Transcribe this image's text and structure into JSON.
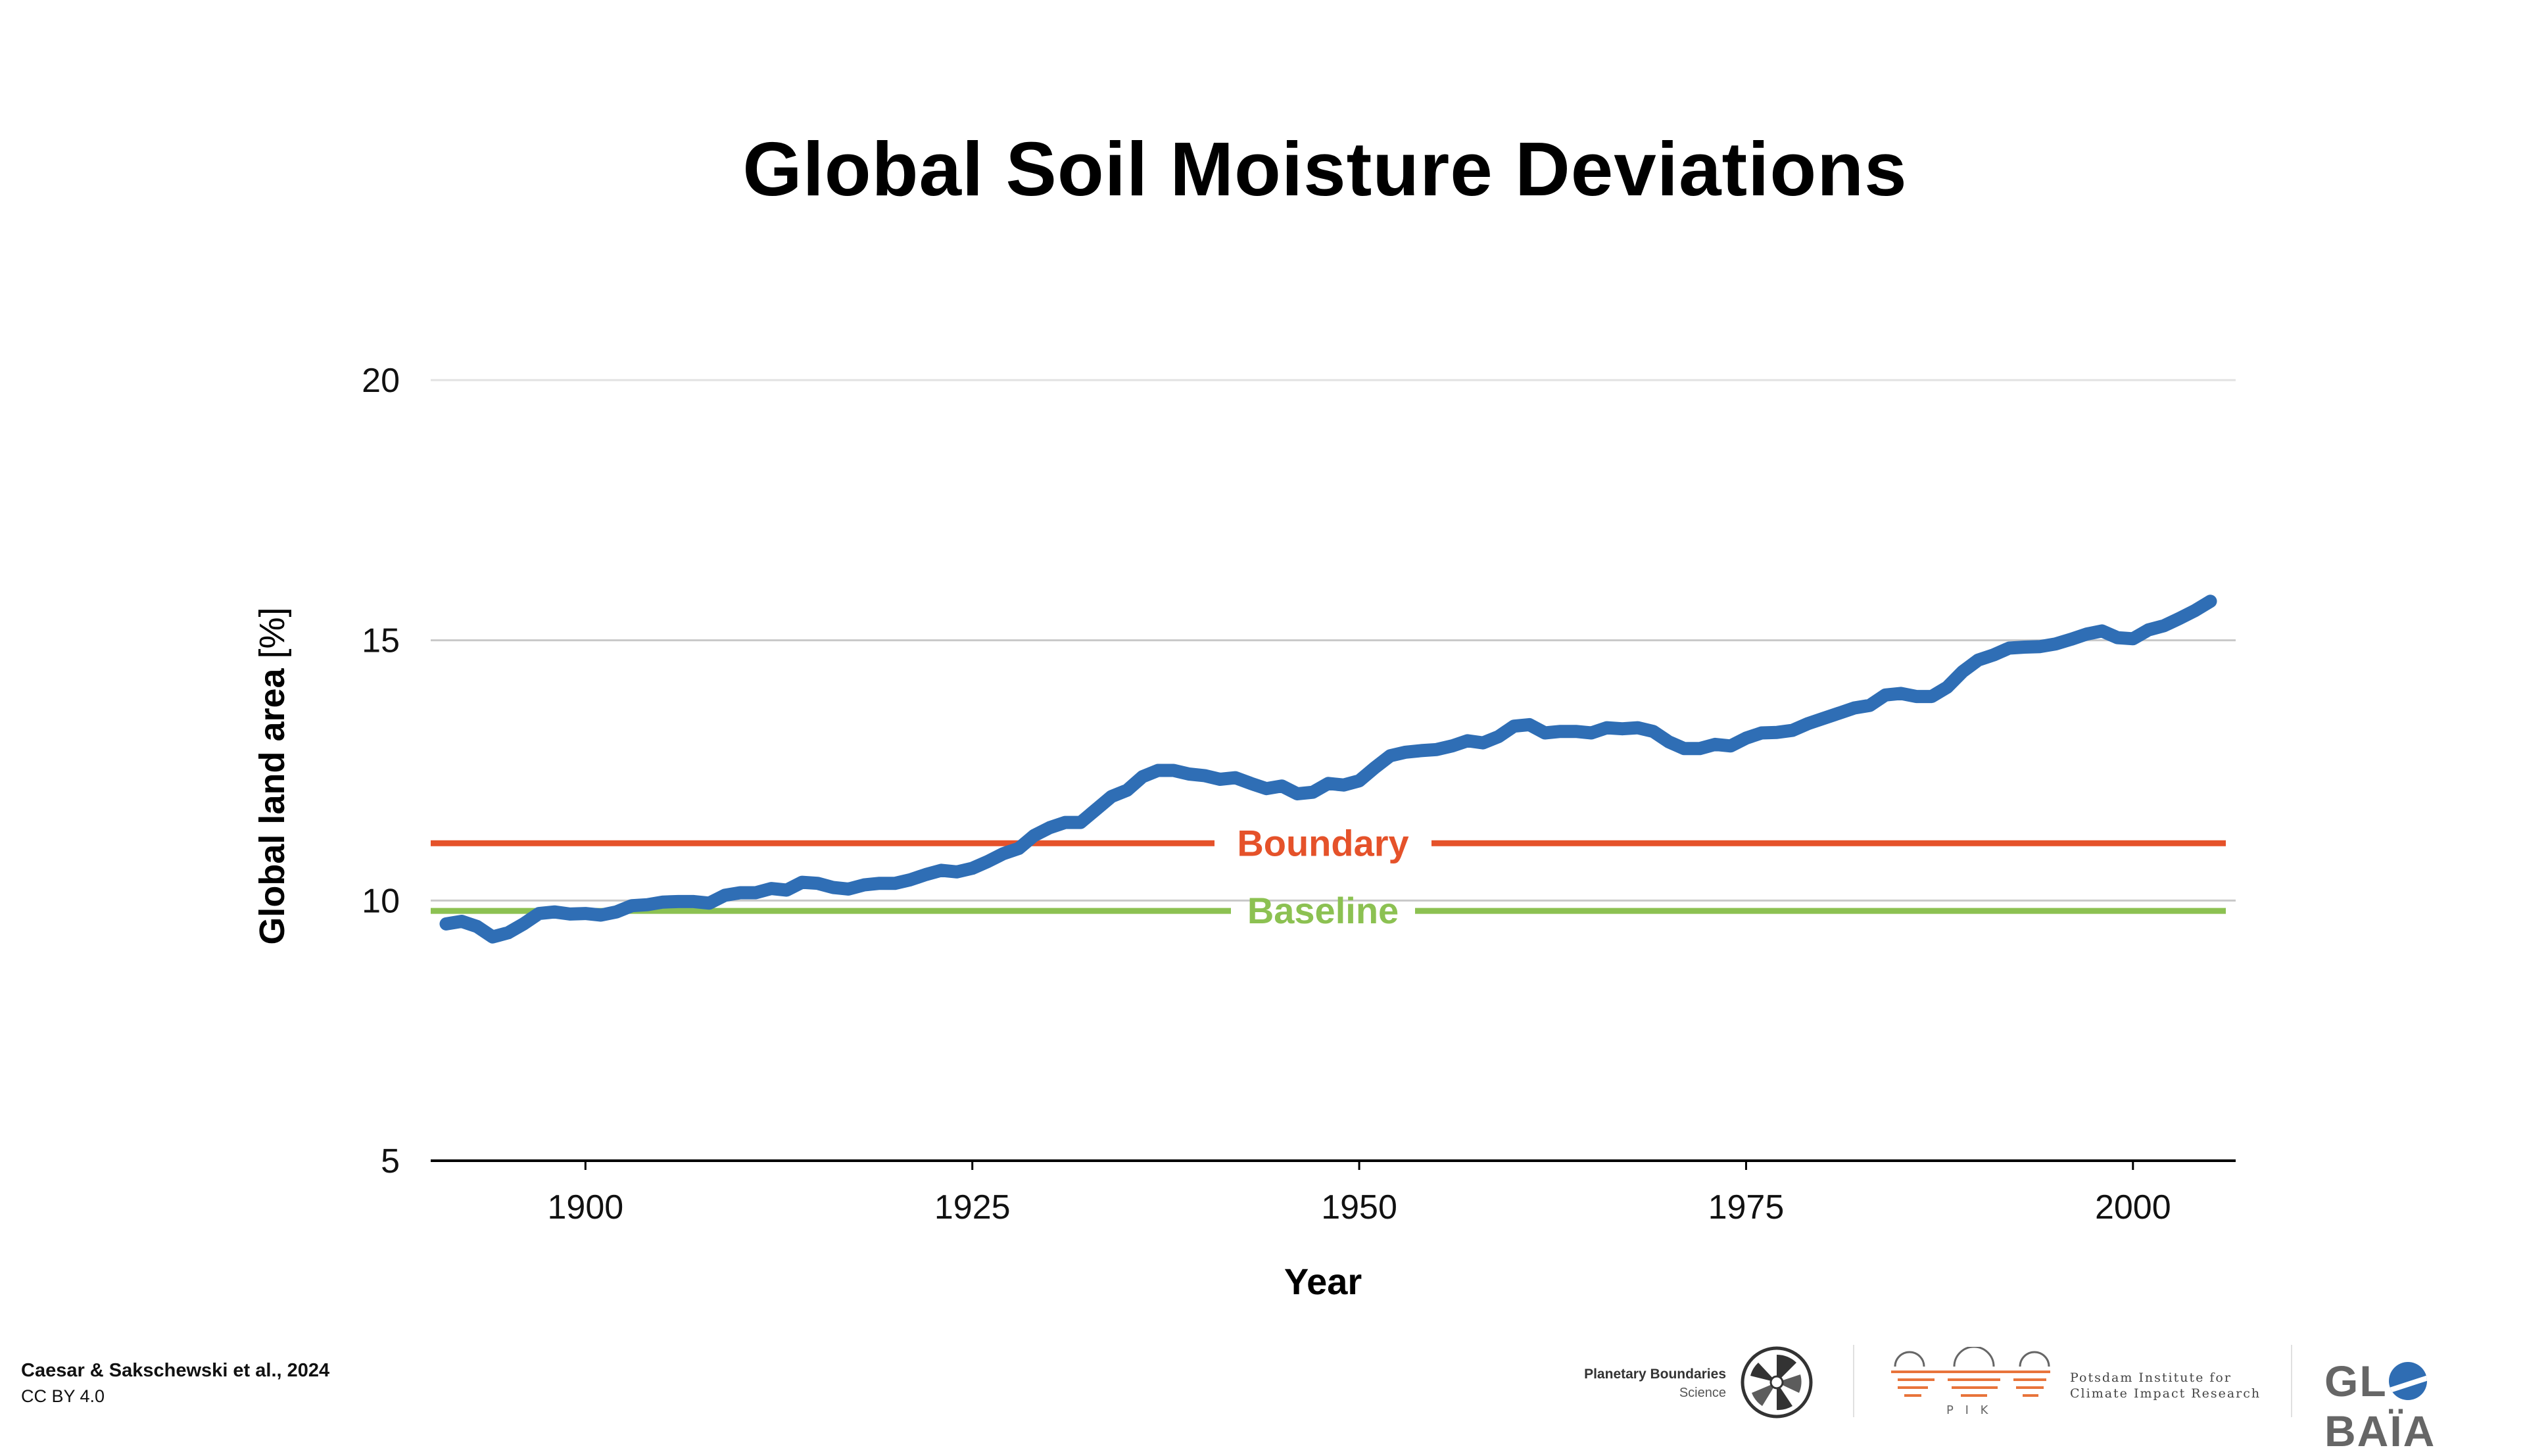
{
  "title": "Global Soil Moisture Deviations",
  "credit": {
    "line1": "Caesar & Sakschewski et al., 2024",
    "line2": "CC BY 4.0"
  },
  "logos": {
    "pbs_line1": "Planetary Boundaries",
    "pbs_line2": "Science",
    "pik_letters": "P I K",
    "pik_line1": "Potsdam Institute for",
    "pik_line2": "Climate Impact Research",
    "globaia_left": "GL",
    "globaia_right": "BAÏA"
  },
  "colors": {
    "series": "#2f6eb5",
    "boundary": "#e5522a",
    "baseline": "#8cc152",
    "grid": "#cfcfcf",
    "axis": "#000000",
    "pik_orange": "#e8743b"
  },
  "chart_data": {
    "type": "line",
    "title": "Global Soil Moisture Deviations",
    "xlabel": "Year",
    "ylabel": "Global land area [%]",
    "xlim": [
      1890,
      2006
    ],
    "ylim": [
      5,
      20
    ],
    "x_ticks": [
      1900,
      1925,
      1950,
      1975,
      2000
    ],
    "y_ticks": [
      5,
      10,
      15,
      20
    ],
    "grid": "horizontal",
    "reference_lines": [
      {
        "name": "Boundary",
        "y": 11.1
      },
      {
        "name": "Baseline",
        "y": 9.8
      }
    ],
    "series": [
      {
        "x": [
          1891,
          1892,
          1893,
          1894,
          1895,
          1896,
          1897,
          1898,
          1899,
          1900,
          1901,
          1902,
          1903,
          1904,
          1905,
          1906,
          1907,
          1908,
          1909,
          1910,
          1911,
          1912,
          1913,
          1914,
          1915,
          1916,
          1917,
          1918,
          1919,
          1920,
          1921,
          1922,
          1923,
          1924,
          1925,
          1926,
          1927,
          1928,
          1929,
          1930,
          1931,
          1932,
          1933,
          1934,
          1935,
          1936,
          1937,
          1938,
          1939,
          1940,
          1941,
          1942,
          1943,
          1944,
          1945,
          1946,
          1947,
          1948,
          1949,
          1950,
          1951,
          1952,
          1953,
          1954,
          1955,
          1956,
          1957,
          1958,
          1959,
          1960,
          1961,
          1962,
          1963,
          1964,
          1965,
          1966,
          1967,
          1968,
          1969,
          1970,
          1971,
          1972,
          1973,
          1974,
          1975,
          1976,
          1977,
          1978,
          1979,
          1980,
          1981,
          1982,
          1983,
          1984,
          1985,
          1986,
          1987,
          1988,
          1989,
          1990,
          1991,
          1992,
          1993,
          1994,
          1995,
          1996,
          1997,
          1998,
          1999,
          2000,
          2001,
          2002,
          2003,
          2004,
          2005
        ],
        "values": [
          9.55,
          9.6,
          9.5,
          9.3,
          9.38,
          9.55,
          9.75,
          9.78,
          9.74,
          9.75,
          9.72,
          9.78,
          9.9,
          9.92,
          9.97,
          9.98,
          9.98,
          9.95,
          10.1,
          10.15,
          10.15,
          10.23,
          10.2,
          10.35,
          10.33,
          10.25,
          10.22,
          10.3,
          10.33,
          10.33,
          10.4,
          10.5,
          10.58,
          10.55,
          10.62,
          10.75,
          10.9,
          11.0,
          11.25,
          11.4,
          11.5,
          11.5,
          11.75,
          12.0,
          12.12,
          12.38,
          12.5,
          12.5,
          12.43,
          12.4,
          12.33,
          12.36,
          12.25,
          12.15,
          12.2,
          12.05,
          12.08,
          12.25,
          12.22,
          12.3,
          12.55,
          12.78,
          12.85,
          12.88,
          12.9,
          12.97,
          13.07,
          13.03,
          13.15,
          13.35,
          13.38,
          13.22,
          13.25,
          13.25,
          13.22,
          13.32,
          13.3,
          13.32,
          13.25,
          13.05,
          12.92,
          12.92,
          13.0,
          12.97,
          13.12,
          13.22,
          13.23,
          13.27,
          13.4,
          13.5,
          13.6,
          13.7,
          13.75,
          13.95,
          13.98,
          13.92,
          13.92,
          14.1,
          14.4,
          14.62,
          14.72,
          14.85,
          14.87,
          14.88,
          14.93,
          15.02,
          15.12,
          15.18,
          15.05,
          15.03,
          15.2,
          15.28,
          15.42,
          15.57,
          15.75
        ]
      }
    ]
  }
}
